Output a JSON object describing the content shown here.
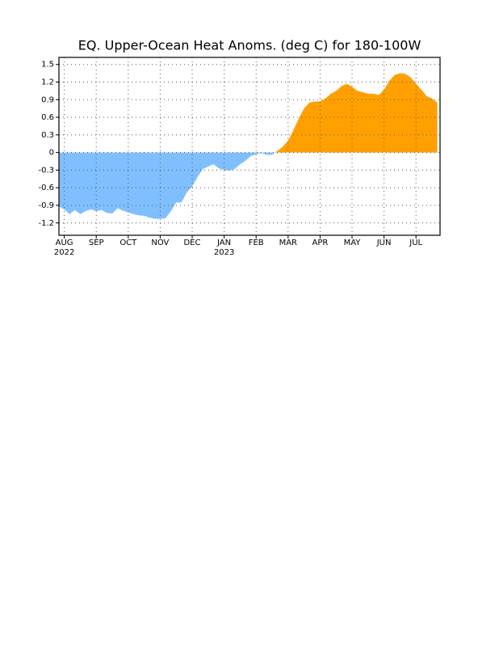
{
  "chart_data": {
    "type": "area",
    "title": "EQ. Upper-Ocean Heat Anoms. (deg C) for 180-100W",
    "categories": [
      null,
      "AUG",
      null,
      null,
      null,
      null,
      null,
      "SEP",
      null,
      null,
      null,
      null,
      null,
      "OCT",
      null,
      null,
      null,
      null,
      null,
      "NOV",
      null,
      null,
      null,
      null,
      null,
      "DEC",
      null,
      null,
      null,
      null,
      null,
      "JAN",
      null,
      null,
      null,
      null,
      null,
      "FEB",
      null,
      null,
      null,
      null,
      null,
      "MAR",
      null,
      null,
      null,
      null,
      null,
      "APR",
      null,
      null,
      null,
      null,
      null,
      "MAY",
      null,
      null,
      null,
      null,
      null,
      "JUN",
      null,
      null,
      null,
      null,
      null,
      "JUL",
      null,
      null,
      null,
      null
    ],
    "category_sublabels": [
      null,
      "2022",
      null,
      null,
      null,
      null,
      null,
      null,
      null,
      null,
      null,
      null,
      null,
      null,
      null,
      null,
      null,
      null,
      null,
      null,
      null,
      null,
      null,
      null,
      null,
      null,
      null,
      null,
      null,
      null,
      null,
      "2023",
      null,
      null,
      null,
      null,
      null,
      null,
      null,
      null,
      null,
      null,
      null,
      null,
      null,
      null,
      null,
      null,
      null,
      null,
      null,
      null,
      null,
      null,
      null,
      null,
      null,
      null,
      null,
      null,
      null,
      null,
      null,
      null,
      null,
      null,
      null,
      null,
      null,
      null,
      null,
      null
    ],
    "values": [
      -0.92,
      -0.97,
      -1.05,
      -0.98,
      -1.05,
      -1.0,
      -0.97,
      -1.0,
      -0.98,
      -1.03,
      -1.04,
      -0.95,
      -0.99,
      -1.02,
      -1.05,
      -1.07,
      -1.08,
      -1.11,
      -1.13,
      -1.13,
      -1.12,
      -1.0,
      -0.85,
      -0.85,
      -0.68,
      -0.58,
      -0.42,
      -0.28,
      -0.24,
      -0.2,
      -0.27,
      -0.3,
      -0.31,
      -0.28,
      -0.2,
      -0.14,
      -0.06,
      -0.03,
      -0.01,
      -0.04,
      -0.04,
      0.03,
      0.1,
      0.2,
      0.38,
      0.58,
      0.75,
      0.85,
      0.87,
      0.87,
      0.92,
      1.0,
      1.05,
      1.13,
      1.17,
      1.12,
      1.05,
      1.03,
      1.0,
      1.0,
      0.98,
      1.07,
      1.22,
      1.32,
      1.35,
      1.34,
      1.28,
      1.17,
      1.07,
      0.96,
      0.92,
      0.85
    ],
    "positive_color": "#ffa000",
    "negative_color": "#80bfff",
    "ylim": [
      -1.41,
      1.62
    ],
    "yticks": [
      1.5,
      1.2,
      0.9,
      0.6,
      0.3,
      0,
      -0.3,
      -0.6,
      -0.9,
      -1.2
    ],
    "grid": true
  }
}
